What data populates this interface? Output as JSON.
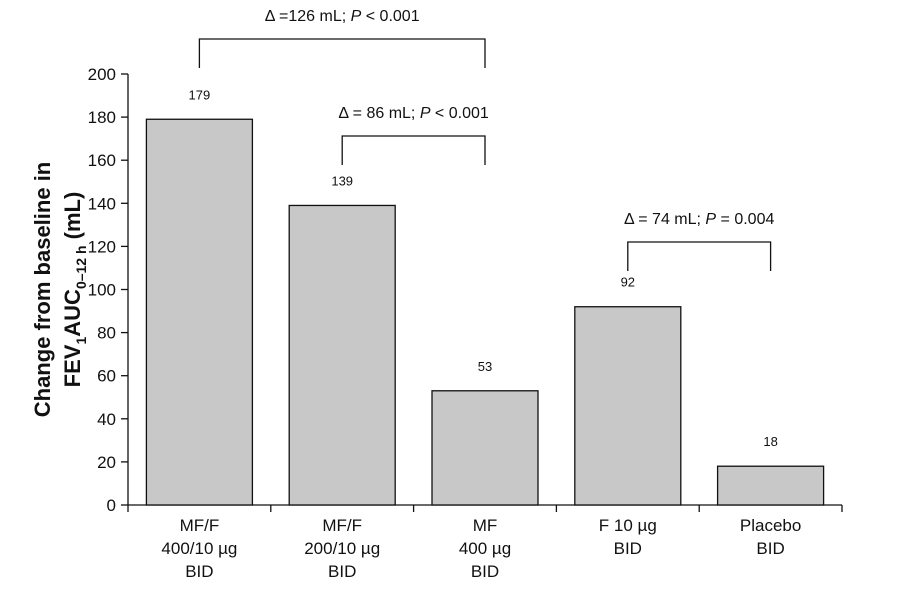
{
  "chart_data": {
    "type": "bar",
    "categories": [
      [
        "MF/F",
        "400/10 µg",
        "BID"
      ],
      [
        "MF/F",
        "200/10 µg",
        "BID"
      ],
      [
        "MF",
        "400 µg",
        "BID"
      ],
      [
        "F 10 µg",
        "BID"
      ],
      [
        "Placebo",
        "BID"
      ]
    ],
    "values": [
      179,
      139,
      53,
      92,
      18
    ],
    "data_labels": [
      "179",
      "139",
      "53",
      "92",
      "18"
    ],
    "ylabel": {
      "line1": "Change from baseline in",
      "line2_a": "FEV",
      "line2_sub1": "1",
      "line2_b": "AUC",
      "line2_sub2": "0–12 h",
      "line2_c": " (mL)"
    },
    "ylim": [
      0,
      200
    ],
    "yticks": [
      0,
      20,
      40,
      60,
      80,
      100,
      120,
      140,
      160,
      180,
      200
    ],
    "grid": false,
    "bar_color": "#c8c8c8",
    "annotations": [
      {
        "from": 0,
        "to": 2,
        "text_prefix": "Δ =126 mL; ",
        "p": "P",
        "text_suffix": " < 0.001"
      },
      {
        "from": 1,
        "to": 2,
        "text_prefix": "Δ = 86 mL; ",
        "p": "P",
        "text_suffix": " < 0.001"
      },
      {
        "from": 3,
        "to": 4,
        "text_prefix": "Δ = 74 mL; ",
        "p": "P",
        "text_suffix": " = 0.004"
      }
    ]
  }
}
